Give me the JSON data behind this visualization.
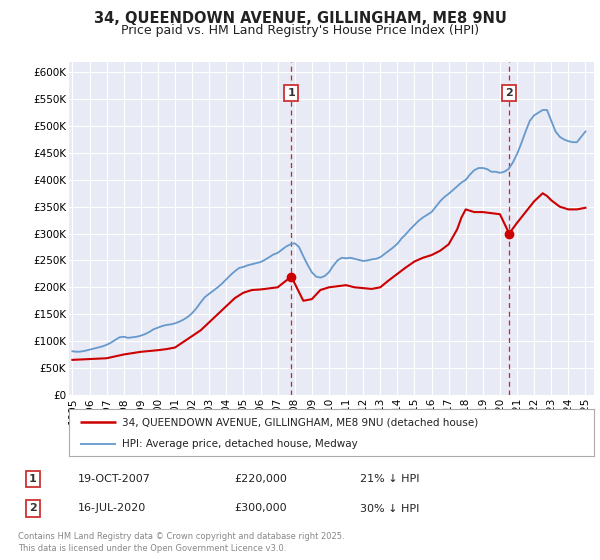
{
  "title": "34, QUEENDOWN AVENUE, GILLINGHAM, ME8 9NU",
  "subtitle": "Price paid vs. HM Land Registry's House Price Index (HPI)",
  "title_fontsize": 10.5,
  "subtitle_fontsize": 9,
  "background_color": "#ffffff",
  "plot_bg_color": "#e8eaf5",
  "grid_color": "#ffffff",
  "ylim": [
    0,
    620000
  ],
  "yticks": [
    0,
    50000,
    100000,
    150000,
    200000,
    250000,
    300000,
    350000,
    400000,
    450000,
    500000,
    550000,
    600000
  ],
  "ytick_labels": [
    "£0",
    "£50K",
    "£100K",
    "£150K",
    "£200K",
    "£250K",
    "£300K",
    "£350K",
    "£400K",
    "£450K",
    "£500K",
    "£550K",
    "£600K"
  ],
  "xlim_start": 1994.8,
  "xlim_end": 2025.5,
  "xtick_years": [
    1995,
    1996,
    1997,
    1998,
    1999,
    2000,
    2001,
    2002,
    2003,
    2004,
    2005,
    2006,
    2007,
    2008,
    2009,
    2010,
    2011,
    2012,
    2013,
    2014,
    2015,
    2016,
    2017,
    2018,
    2019,
    2020,
    2021,
    2022,
    2023,
    2024,
    2025
  ],
  "marker1_x": 2007.8,
  "marker1_y": 220000,
  "marker2_x": 2020.54,
  "marker2_y": 300000,
  "annotation1": [
    "1",
    "19-OCT-2007",
    "£220,000",
    "21% ↓ HPI"
  ],
  "annotation2": [
    "2",
    "16-JUL-2020",
    "£300,000",
    "30% ↓ HPI"
  ],
  "legend_line1": "34, QUEENDOWN AVENUE, GILLINGHAM, ME8 9NU (detached house)",
  "legend_line2": "HPI: Average price, detached house, Medway",
  "footer": "Contains HM Land Registry data © Crown copyright and database right 2025.\nThis data is licensed under the Open Government Licence v3.0.",
  "red_color": "#cc0000",
  "blue_color": "#6699cc",
  "hpi_x": [
    1995.0,
    1995.25,
    1995.5,
    1995.75,
    1996.0,
    1996.25,
    1996.5,
    1996.75,
    1997.0,
    1997.25,
    1997.5,
    1997.75,
    1998.0,
    1998.25,
    1998.5,
    1998.75,
    1999.0,
    1999.25,
    1999.5,
    1999.75,
    2000.0,
    2000.25,
    2000.5,
    2000.75,
    2001.0,
    2001.25,
    2001.5,
    2001.75,
    2002.0,
    2002.25,
    2002.5,
    2002.75,
    2003.0,
    2003.25,
    2003.5,
    2003.75,
    2004.0,
    2004.25,
    2004.5,
    2004.75,
    2005.0,
    2005.25,
    2005.5,
    2005.75,
    2006.0,
    2006.25,
    2006.5,
    2006.75,
    2007.0,
    2007.25,
    2007.5,
    2007.75,
    2008.0,
    2008.25,
    2008.5,
    2008.75,
    2009.0,
    2009.25,
    2009.5,
    2009.75,
    2010.0,
    2010.25,
    2010.5,
    2010.75,
    2011.0,
    2011.25,
    2011.5,
    2011.75,
    2012.0,
    2012.25,
    2012.5,
    2012.75,
    2013.0,
    2013.25,
    2013.5,
    2013.75,
    2014.0,
    2014.25,
    2014.5,
    2014.75,
    2015.0,
    2015.25,
    2015.5,
    2015.75,
    2016.0,
    2016.25,
    2016.5,
    2016.75,
    2017.0,
    2017.25,
    2017.5,
    2017.75,
    2018.0,
    2018.25,
    2018.5,
    2018.75,
    2019.0,
    2019.25,
    2019.5,
    2019.75,
    2020.0,
    2020.25,
    2020.5,
    2020.75,
    2021.0,
    2021.25,
    2021.5,
    2021.75,
    2022.0,
    2022.25,
    2022.5,
    2022.75,
    2023.0,
    2023.25,
    2023.5,
    2023.75,
    2024.0,
    2024.25,
    2024.5,
    2024.75,
    2025.0
  ],
  "hpi_y": [
    81000,
    80000,
    80500,
    82000,
    84000,
    86000,
    88000,
    90000,
    93000,
    97000,
    102000,
    107000,
    108000,
    106000,
    107000,
    108000,
    110000,
    113000,
    117000,
    122000,
    125000,
    128000,
    130000,
    131000,
    133000,
    136000,
    140000,
    145000,
    152000,
    161000,
    172000,
    182000,
    188000,
    194000,
    200000,
    207000,
    215000,
    223000,
    230000,
    236000,
    238000,
    241000,
    243000,
    245000,
    247000,
    251000,
    256000,
    261000,
    264000,
    270000,
    276000,
    280000,
    282000,
    275000,
    258000,
    242000,
    228000,
    220000,
    218000,
    221000,
    228000,
    240000,
    250000,
    255000,
    254000,
    255000,
    253000,
    251000,
    249000,
    250000,
    252000,
    253000,
    256000,
    262000,
    268000,
    274000,
    281000,
    291000,
    299000,
    308000,
    316000,
    324000,
    330000,
    335000,
    340000,
    350000,
    360000,
    368000,
    374000,
    381000,
    388000,
    395000,
    400000,
    410000,
    418000,
    422000,
    422000,
    420000,
    415000,
    415000,
    413000,
    415000,
    420000,
    432000,
    448000,
    468000,
    490000,
    510000,
    520000,
    525000,
    530000,
    530000,
    510000,
    490000,
    480000,
    475000,
    472000,
    470000,
    470000,
    480000,
    490000
  ],
  "price_x": [
    1995.0,
    1997.0,
    1998.0,
    1999.0,
    2000.0,
    2000.5,
    2001.0,
    2002.5,
    2003.5,
    2004.0,
    2004.5,
    2005.0,
    2005.5,
    2006.0,
    2006.5,
    2007.0,
    2007.8,
    2008.5,
    2009.0,
    2009.5,
    2010.0,
    2010.5,
    2011.0,
    2011.5,
    2012.5,
    2013.0,
    2013.5,
    2014.0,
    2014.5,
    2015.0,
    2015.5,
    2016.0,
    2016.5,
    2017.0,
    2017.5,
    2017.75,
    2018.0,
    2018.5,
    2019.0,
    2019.5,
    2020.0,
    2020.54,
    2021.0,
    2021.5,
    2022.0,
    2022.5,
    2022.75,
    2023.0,
    2023.5,
    2024.0,
    2024.5,
    2025.0
  ],
  "price_y": [
    65000,
    68000,
    75000,
    80000,
    83000,
    85000,
    88000,
    120000,
    150000,
    165000,
    180000,
    190000,
    195000,
    196000,
    198000,
    200000,
    220000,
    175000,
    178000,
    195000,
    200000,
    202000,
    204000,
    200000,
    197000,
    200000,
    213000,
    225000,
    237000,
    248000,
    255000,
    260000,
    268000,
    280000,
    308000,
    330000,
    345000,
    340000,
    340000,
    338000,
    336000,
    300000,
    320000,
    340000,
    360000,
    375000,
    370000,
    362000,
    350000,
    345000,
    345000,
    348000
  ]
}
